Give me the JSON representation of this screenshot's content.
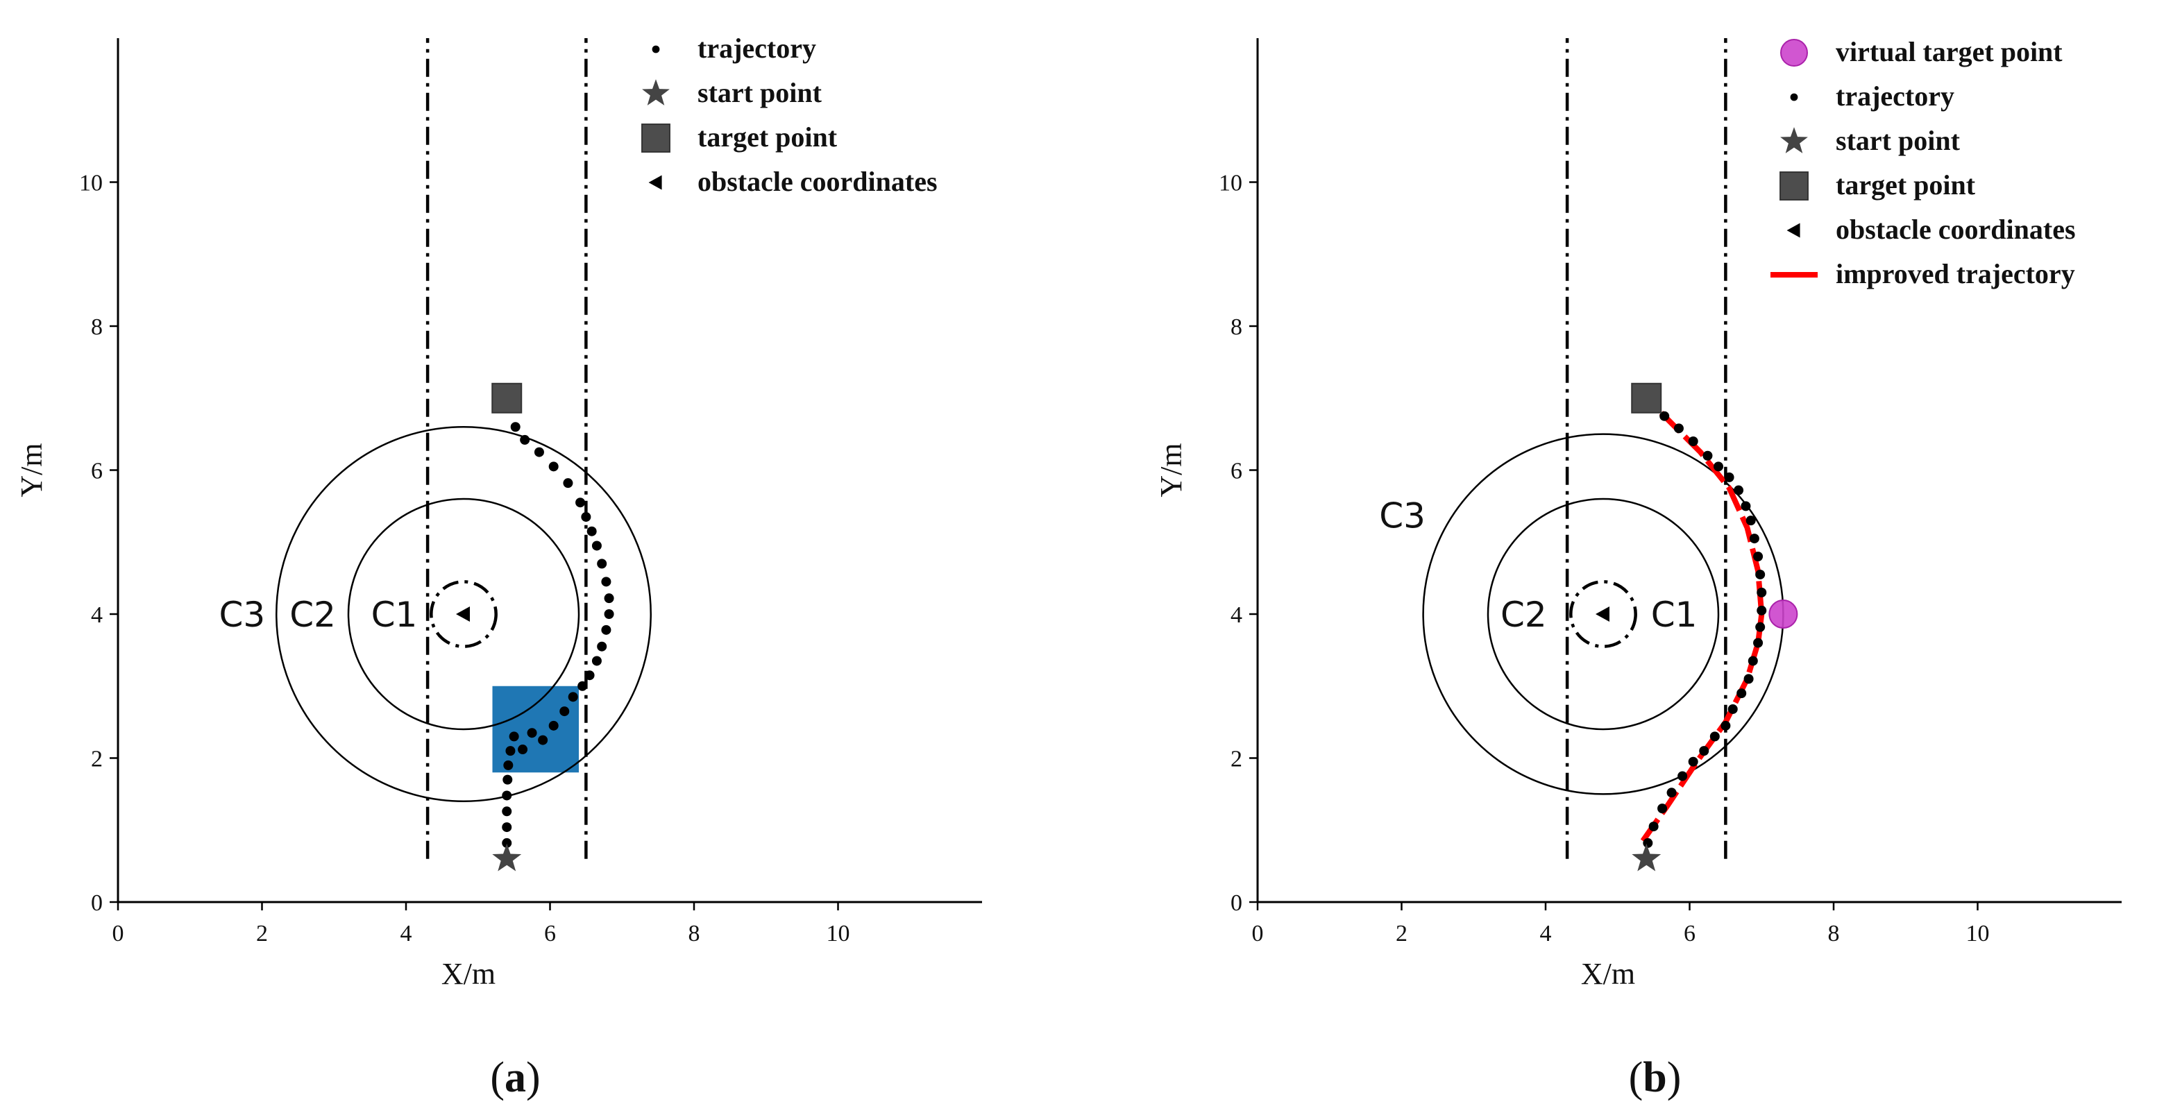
{
  "figure": {
    "panels": [
      "(a)",
      "(b)"
    ]
  },
  "chart_data": [
    {
      "type": "scatter",
      "panel_label": "(a)",
      "xlabel": "X/m",
      "ylabel": "Y/m",
      "xlim": [
        0,
        12
      ],
      "ylim": [
        0,
        12
      ],
      "xticks": [
        0,
        2,
        4,
        6,
        8,
        10
      ],
      "yticks": [
        0,
        2,
        4,
        6,
        8,
        10
      ],
      "grid": false,
      "legend_position": "top-right",
      "legend": [
        {
          "label": "trajectory",
          "marker": "dot"
        },
        {
          "label": "start point",
          "marker": "star"
        },
        {
          "label": "target point",
          "marker": "square"
        },
        {
          "label": "obstacle coordinates",
          "marker": "triangle-left"
        }
      ],
      "vlines": [
        4.3,
        6.5
      ],
      "circles": [
        {
          "label": "C1",
          "cx": 4.8,
          "cy": 4.0,
          "r": 0.45,
          "style": "dashdot"
        },
        {
          "label": "C2",
          "cx": 4.8,
          "cy": 4.0,
          "r": 1.6,
          "style": "solid"
        },
        {
          "label": "C3",
          "cx": 4.8,
          "cy": 4.0,
          "r": 2.6,
          "style": "solid"
        }
      ],
      "obstacle": {
        "x": 4.8,
        "y": 4.0
      },
      "start": {
        "x": 5.4,
        "y": 0.6
      },
      "target": {
        "x": 5.4,
        "y": 7.0
      },
      "highlight_rect": {
        "x0": 5.2,
        "y0": 1.8,
        "x1": 6.4,
        "y1": 3.0,
        "color": "#1f77b4"
      },
      "trajectory": [
        [
          5.4,
          0.82
        ],
        [
          5.4,
          1.04
        ],
        [
          5.4,
          1.26
        ],
        [
          5.4,
          1.48
        ],
        [
          5.41,
          1.7
        ],
        [
          5.42,
          1.9
        ],
        [
          5.45,
          2.1
        ],
        [
          5.5,
          2.3
        ],
        [
          5.62,
          2.12
        ],
        [
          5.75,
          2.35
        ],
        [
          5.9,
          2.25
        ],
        [
          6.05,
          2.45
        ],
        [
          6.2,
          2.65
        ],
        [
          6.32,
          2.85
        ],
        [
          6.45,
          3.0
        ],
        [
          6.55,
          3.15
        ],
        [
          6.65,
          3.35
        ],
        [
          6.72,
          3.55
        ],
        [
          6.78,
          3.78
        ],
        [
          6.82,
          4.0
        ],
        [
          6.82,
          4.22
        ],
        [
          6.78,
          4.45
        ],
        [
          6.72,
          4.7
        ],
        [
          6.65,
          4.95
        ],
        [
          6.58,
          5.15
        ],
        [
          6.5,
          5.35
        ],
        [
          6.42,
          5.55
        ],
        [
          6.25,
          5.82
        ],
        [
          6.05,
          6.05
        ],
        [
          5.85,
          6.25
        ],
        [
          5.65,
          6.42
        ],
        [
          5.52,
          6.6
        ]
      ]
    },
    {
      "type": "scatter",
      "panel_label": "(b)",
      "xlabel": "X/m",
      "ylabel": "Y/m",
      "xlim": [
        0,
        12
      ],
      "ylim": [
        0,
        12
      ],
      "xticks": [
        0,
        2,
        4,
        6,
        8,
        10
      ],
      "yticks": [
        0,
        2,
        4,
        6,
        8,
        10
      ],
      "grid": false,
      "legend_position": "top-right",
      "legend": [
        {
          "label": "virtual target point",
          "marker": "circle-magenta"
        },
        {
          "label": "trajectory",
          "marker": "dot"
        },
        {
          "label": "start point",
          "marker": "star"
        },
        {
          "label": "target point",
          "marker": "square"
        },
        {
          "label": "obstacle coordinates",
          "marker": "triangle-left"
        },
        {
          "label": "improved trajectory",
          "marker": "red-line"
        }
      ],
      "vlines": [
        4.3,
        6.5
      ],
      "circles": [
        {
          "label": "C1",
          "cx": 4.8,
          "cy": 4.0,
          "r": 0.45,
          "style": "dashdot"
        },
        {
          "label": "C2",
          "cx": 4.8,
          "cy": 4.0,
          "r": 1.6,
          "style": "solid"
        },
        {
          "label": "C3",
          "cx": 4.8,
          "cy": 4.0,
          "r": 2.5,
          "style": "solid"
        }
      ],
      "obstacle": {
        "x": 4.8,
        "y": 4.0
      },
      "start": {
        "x": 5.4,
        "y": 0.6
      },
      "target": {
        "x": 5.4,
        "y": 7.0
      },
      "virtual_target": {
        "x": 7.3,
        "y": 4.0,
        "color": "#cc44cc"
      },
      "trajectory": [
        [
          5.42,
          0.82
        ],
        [
          5.5,
          1.05
        ],
        [
          5.62,
          1.3
        ],
        [
          5.75,
          1.52
        ],
        [
          5.9,
          1.75
        ],
        [
          6.05,
          1.95
        ],
        [
          6.2,
          2.1
        ],
        [
          6.35,
          2.3
        ],
        [
          6.5,
          2.45
        ],
        [
          6.6,
          2.68
        ],
        [
          6.72,
          2.9
        ],
        [
          6.82,
          3.1
        ],
        [
          6.88,
          3.35
        ],
        [
          6.95,
          3.6
        ],
        [
          6.98,
          3.82
        ],
        [
          7.0,
          4.05
        ],
        [
          7.0,
          4.3
        ],
        [
          6.98,
          4.55
        ],
        [
          6.95,
          4.8
        ],
        [
          6.9,
          5.05
        ],
        [
          6.85,
          5.3
        ],
        [
          6.78,
          5.5
        ],
        [
          6.68,
          5.72
        ],
        [
          6.55,
          5.9
        ],
        [
          6.4,
          6.05
        ],
        [
          6.25,
          6.2
        ],
        [
          6.05,
          6.4
        ],
        [
          5.85,
          6.58
        ],
        [
          5.65,
          6.75
        ]
      ],
      "improved_trajectory": {
        "color": "#ff0000",
        "points": [
          [
            5.35,
            0.85
          ],
          [
            5.7,
            1.35
          ],
          [
            6.1,
            1.95
          ],
          [
            6.5,
            2.5
          ],
          [
            6.8,
            3.1
          ],
          [
            6.95,
            3.6
          ],
          [
            7.0,
            4.0
          ],
          [
            6.95,
            4.6
          ],
          [
            6.8,
            5.2
          ],
          [
            6.55,
            5.75
          ],
          [
            6.15,
            6.25
          ],
          [
            5.6,
            6.8
          ]
        ]
      }
    }
  ]
}
